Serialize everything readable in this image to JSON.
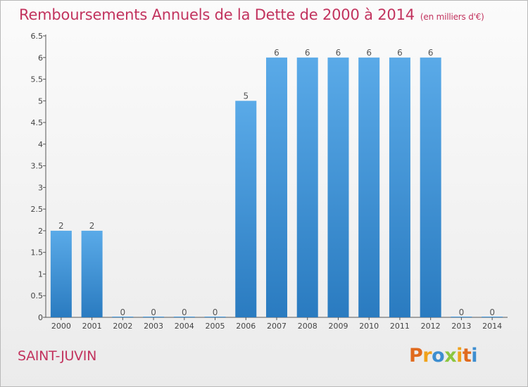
{
  "chart_data": {
    "type": "bar",
    "title": "Remboursements Annuels de la Dette de 2000 à 2014",
    "subtitle": "(en milliers d'€)",
    "categories": [
      "2000",
      "2001",
      "2002",
      "2003",
      "2004",
      "2005",
      "2006",
      "2007",
      "2008",
      "2009",
      "2010",
      "2011",
      "2012",
      "2013",
      "2014"
    ],
    "values": [
      2,
      2,
      0,
      0,
      0,
      0,
      5,
      6,
      6,
      6,
      6,
      6,
      6,
      0,
      0
    ],
    "data_labels": [
      "2",
      "2",
      "0",
      "0",
      "0",
      "0",
      "5",
      "6",
      "6",
      "6",
      "6",
      "6",
      "6",
      "0",
      "0"
    ],
    "ylim": [
      0,
      6.5
    ],
    "y_ticks": [
      "0",
      "0.5",
      "1",
      "1.5",
      "2",
      "2.5",
      "3",
      "3.5",
      "4",
      "4.5",
      "5",
      "5.5",
      "6",
      "6.5"
    ],
    "grid": false,
    "bar_color": "#3f96dc"
  },
  "footer": {
    "city": "SAINT-JUVIN",
    "logo": "Proxiti"
  }
}
